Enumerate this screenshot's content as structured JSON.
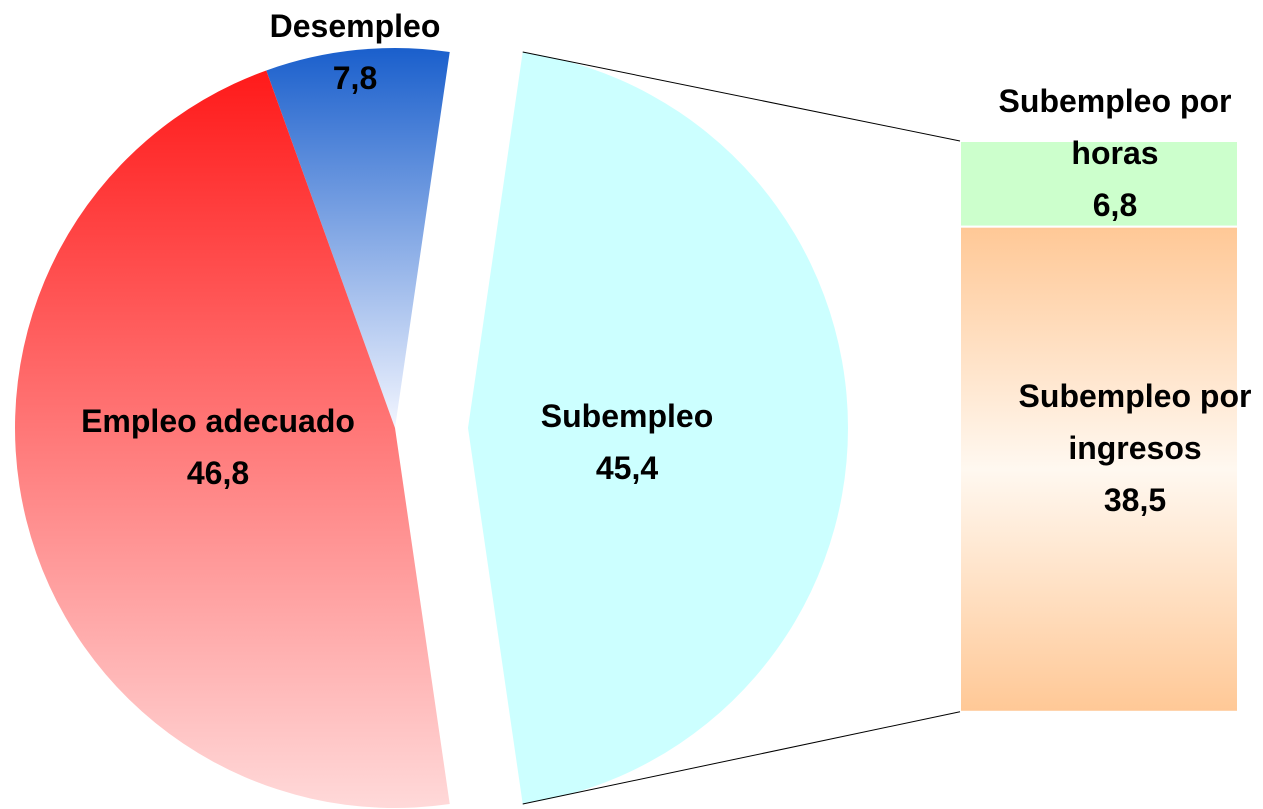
{
  "chart_data": {
    "type": "pie-of-bar",
    "categories": [
      "Subempleo",
      "Desempleo",
      "Empleo adecuado"
    ],
    "values": [
      45.4,
      7.8,
      46.8
    ],
    "value_labels": [
      "45,4",
      "7,8",
      "46,8"
    ],
    "colors": [
      [
        "#ccffff",
        "#ccffff"
      ],
      [
        "#1a5fcc",
        "#f2f5ff"
      ],
      [
        "#ff1a1a",
        "#ffd9d9"
      ]
    ],
    "breakdown": {
      "of": "Subempleo",
      "categories": [
        "Subempleo por horas",
        "Subempleo por ingresos"
      ],
      "values": [
        6.8,
        38.5
      ],
      "value_labels": [
        "6,8",
        "38,5"
      ],
      "colors": [
        [
          "#ccffcc",
          "#ccffcc"
        ],
        [
          "#ffc896",
          "#fff8f0"
        ]
      ]
    }
  }
}
